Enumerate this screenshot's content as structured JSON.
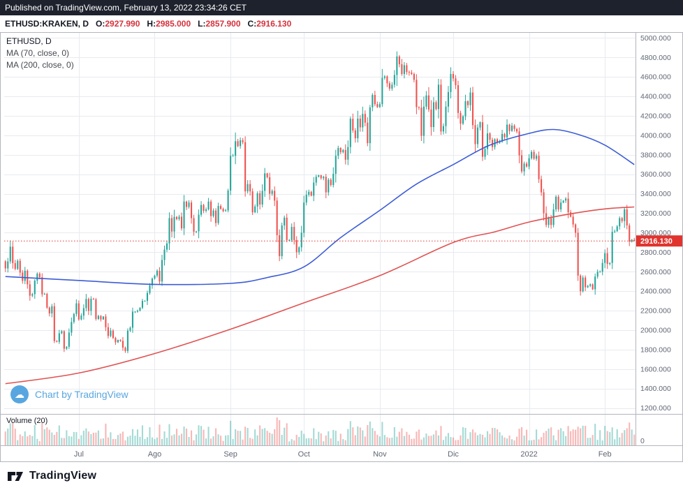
{
  "published_bar": {
    "text": "Published on TradingView.com, February 13, 2022 23:34:26 CET"
  },
  "symbol_bar": {
    "symbol": "ETHUSD:KRAKEN, D",
    "ohlc": [
      {
        "label": "O:",
        "value": "2927.990"
      },
      {
        "label": "H:",
        "value": "2985.000"
      },
      {
        "label": "L:",
        "value": "2857.900"
      },
      {
        "label": "C:",
        "value": "2916.130"
      }
    ]
  },
  "legend": {
    "title": "ETHUSD, D",
    "ma1": "MA (70, close, 0)",
    "ma2": "MA (200, close, 0)"
  },
  "watermark": {
    "text": "Chart by TradingView"
  },
  "volume_pane": {
    "label": "Volume (20)",
    "zero_label": "0"
  },
  "footer": {
    "brand": "TradingView"
  },
  "colors": {
    "published_bg": "#1e222d",
    "published_text": "#ffffff",
    "symbol_text": "#131722",
    "ohlc_value": "#d6323c",
    "legend_text": "#45494f",
    "watermark": "#58a6e0",
    "up": "#26a69a",
    "down": "#ef5350",
    "ma70": "#3c5cd6",
    "ma200": "#e05252",
    "grid": "#e8eaf0",
    "border": "#b2b5be",
    "axis_text": "#606674",
    "last_line": "#e0342f",
    "last_label_bg": "#e0342f"
  },
  "chart_data": {
    "type": "candlestick",
    "symbol": "ETHUSD",
    "exchange": "KRAKEN",
    "interval": "D",
    "last": {
      "open": 2927.99,
      "high": 2985.0,
      "low": 2857.9,
      "close": 2916.13
    },
    "last_price_label": "2916.130",
    "ylim": [
      1140,
      5060
    ],
    "y_ticks": [
      5000,
      4800,
      4600,
      4400,
      4200,
      4000,
      3800,
      3600,
      3400,
      3200,
      3000,
      2800,
      2600,
      2400,
      2200,
      2000,
      1800,
      1600,
      1400,
      1200
    ],
    "x_ticks": [
      {
        "label": "Jul",
        "i": 30
      },
      {
        "label": "Ago",
        "i": 61
      },
      {
        "label": "Sep",
        "i": 92
      },
      {
        "label": "Oct",
        "i": 122
      },
      {
        "label": "Nov",
        "i": 153
      },
      {
        "label": "Dic",
        "i": 183
      },
      {
        "label": "2022",
        "i": 214
      },
      {
        "label": "Feb",
        "i": 245
      }
    ],
    "first_open": 2707,
    "closes": [
      2634,
      2706,
      2857,
      2688,
      2629,
      2712,
      2591,
      2506,
      2610,
      2471,
      2354,
      2370,
      2508,
      2580,
      2543,
      2368,
      2373,
      2231,
      2172,
      2245,
      1888,
      1880,
      1968,
      1989,
      1809,
      1830,
      1975,
      2084,
      2166,
      2275,
      2110,
      2150,
      2226,
      2320,
      2198,
      2322,
      2316,
      2115,
      2146,
      2110,
      2140,
      2030,
      1940,
      1995,
      1920,
      1875,
      1900,
      1890,
      1820,
      1786,
      1995,
      2025,
      2190,
      2190,
      2200,
      2230,
      2300,
      2300,
      2382,
      2460,
      2530,
      2560,
      2610,
      2500,
      2720,
      2827,
      2890,
      3150,
      3012,
      3163,
      3140,
      3165,
      3045,
      3320,
      3265,
      3310,
      3150,
      3010,
      3015,
      3185,
      3285,
      3225,
      3240,
      3320,
      3172,
      3228,
      3100,
      3275,
      3245,
      3222,
      3230,
      3433,
      3790,
      3790,
      3940,
      3890,
      3950,
      3930,
      3425,
      3500,
      3425,
      3210,
      3270,
      3405,
      3290,
      3430,
      3610,
      3570,
      3400,
      3430,
      3330,
      2975,
      2760,
      3075,
      3155,
      2925,
      2925,
      3060,
      2925,
      2800,
      2850,
      3000,
      3310,
      3390,
      3420,
      3380,
      3515,
      3575,
      3590,
      3560,
      3575,
      3415,
      3545,
      3490,
      3605,
      3790,
      3870,
      3827,
      3850,
      3750,
      3880,
      4170,
      4050,
      3970,
      4172,
      4082,
      4220,
      4130,
      3920,
      4287,
      4415,
      4320,
      4290,
      4320,
      4590,
      4605,
      4535,
      4480,
      4520,
      4620,
      4810,
      4730,
      4630,
      4720,
      4650,
      4645,
      4630,
      4570,
      4290,
      4285,
      3995,
      4295,
      4410,
      4265,
      4085,
      4340,
      4270,
      4520,
      4040,
      4095,
      4295,
      4445,
      4630,
      4585,
      4515,
      4230,
      4120,
      4195,
      4350,
      4310,
      4440,
      4105,
      3910,
      4080,
      4135,
      3780,
      3860,
      4020,
      3955,
      3880,
      3960,
      3925,
      3935,
      4015,
      3980,
      4110,
      4045,
      4100,
      4065,
      4040,
      3795,
      3630,
      3710,
      3680,
      3765,
      3830,
      3760,
      3790,
      3550,
      3415,
      3200,
      3080,
      3150,
      3080,
      3240,
      3370,
      3240,
      3310,
      3330,
      3350,
      3210,
      3165,
      3085,
      3000,
      2560,
      2400,
      2540,
      2440,
      2455,
      2470,
      2420,
      2550,
      2600,
      2600,
      2690,
      2790,
      2680,
      2690,
      3010,
      3015,
      3065,
      3150,
      3120,
      3240,
      3075,
      2910,
      2928,
      2916.13
    ],
    "ma70_points": [
      [
        0,
        2550
      ],
      [
        30,
        2510
      ],
      [
        61,
        2470
      ],
      [
        92,
        2480
      ],
      [
        107,
        2540
      ],
      [
        122,
        2650
      ],
      [
        137,
        2950
      ],
      [
        153,
        3230
      ],
      [
        168,
        3500
      ],
      [
        183,
        3700
      ],
      [
        198,
        3900
      ],
      [
        214,
        4020
      ],
      [
        224,
        4060
      ],
      [
        234,
        4010
      ],
      [
        245,
        3900
      ],
      [
        257,
        3700
      ]
    ],
    "ma200_points": [
      [
        0,
        1450
      ],
      [
        30,
        1560
      ],
      [
        61,
        1760
      ],
      [
        92,
        2010
      ],
      [
        122,
        2280
      ],
      [
        153,
        2560
      ],
      [
        183,
        2900
      ],
      [
        200,
        3010
      ],
      [
        214,
        3110
      ],
      [
        230,
        3190
      ],
      [
        245,
        3245
      ],
      [
        257,
        3265
      ]
    ]
  }
}
